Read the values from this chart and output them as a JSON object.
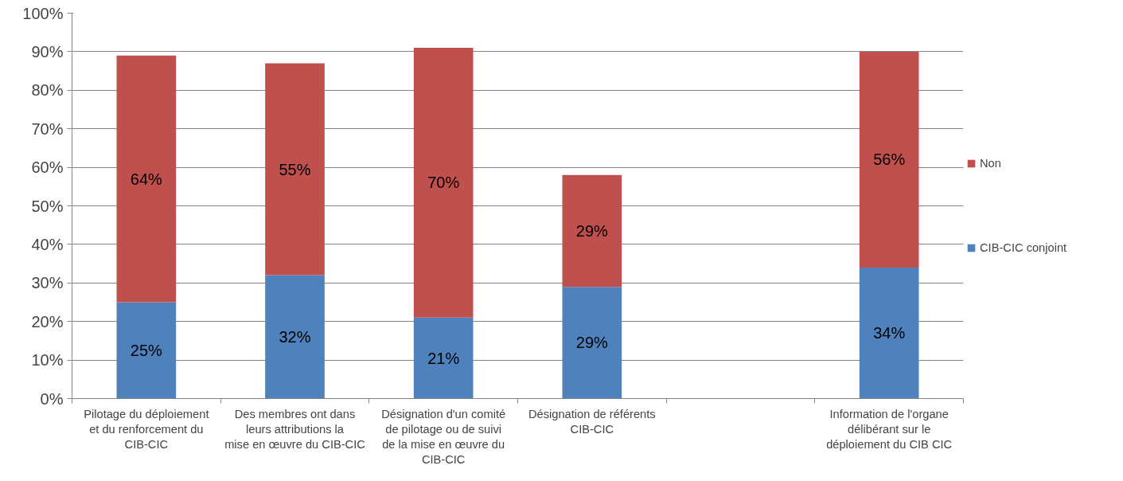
{
  "chart_data": {
    "type": "bar",
    "stacked": true,
    "categories": [
      "Pilotage du déploiement et du renforcement du CIB-CIC",
      "Des membres ont dans leurs attributions la mise en œuvre du CIB-CIC",
      "Désignation d'un comité de pilotage ou de suivi de la mise en œuvre du CIB-CIC",
      "Désignation de référents CIB-CIC",
      null,
      "Information de l'organe délibérant sur le déploiement du CIB CIC"
    ],
    "series": [
      {
        "name": "CIB-CIC conjoint",
        "color": "#4f81bd",
        "values": [
          25,
          32,
          21,
          29,
          null,
          34
        ],
        "value_labels": [
          "25%",
          "32%",
          "21%",
          "29%",
          null,
          "34%"
        ]
      },
      {
        "name": "Non",
        "color": "#c0504d",
        "values": [
          64,
          55,
          70,
          29,
          null,
          56
        ],
        "value_labels": [
          "64%",
          "55%",
          "70%",
          "29%",
          null,
          "56%"
        ]
      }
    ],
    "ylim": [
      0,
      100
    ],
    "yticks": [
      {
        "value": 0,
        "label": "0%"
      },
      {
        "value": 10,
        "label": "10%"
      },
      {
        "value": 20,
        "label": "20%"
      },
      {
        "value": 30,
        "label": "30%"
      },
      {
        "value": 40,
        "label": "40%"
      },
      {
        "value": 50,
        "label": "50%"
      },
      {
        "value": 60,
        "label": "60%"
      },
      {
        "value": 70,
        "label": "70%"
      },
      {
        "value": 80,
        "label": "80%"
      },
      {
        "value": 90,
        "label": "90%"
      },
      {
        "value": 100,
        "label": "100%"
      }
    ],
    "grid": "y",
    "legend": "right"
  }
}
